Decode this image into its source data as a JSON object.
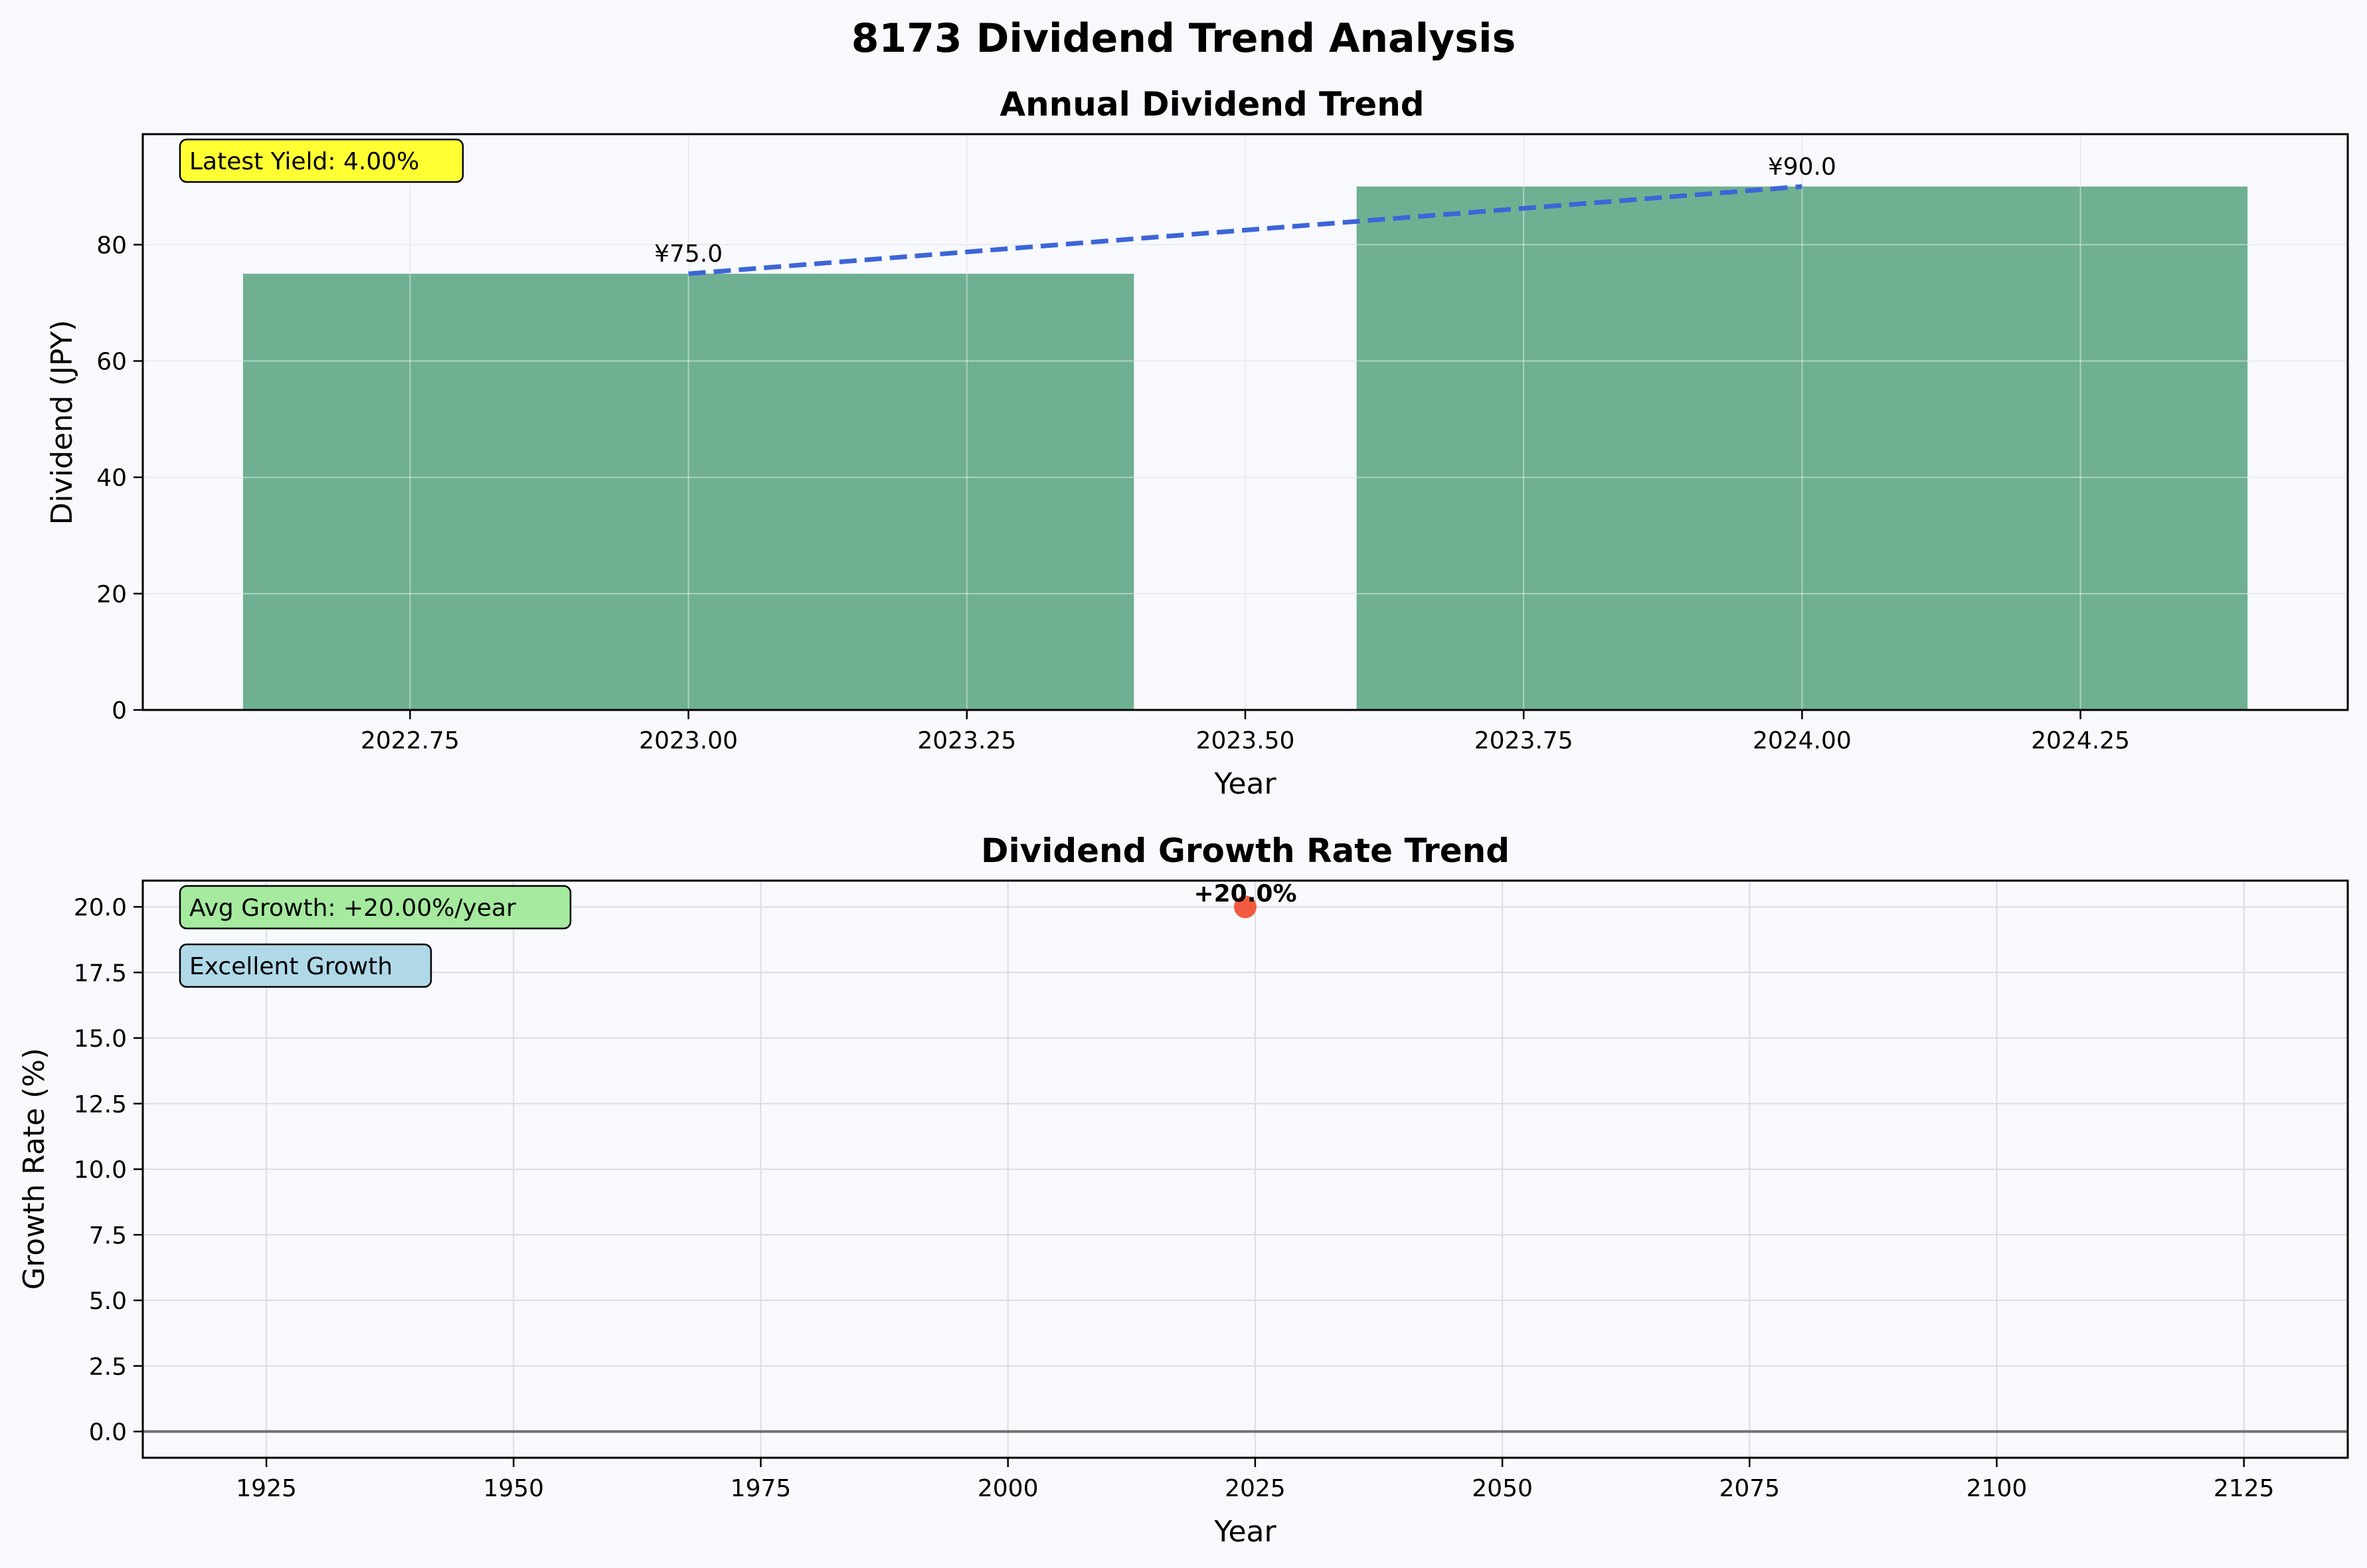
{
  "figure": {
    "title": "8173 Dividend Trend Analysis",
    "background": "#f8f9fc"
  },
  "chart_data": [
    {
      "type": "bar",
      "title": "Annual Dividend Trend",
      "xlabel": "Year",
      "ylabel": "Dividend (JPY)",
      "xlim": [
        2022.51,
        2024.49
      ],
      "ylim": [
        0,
        99
      ],
      "xticks": [
        2022.75,
        2023.0,
        2023.25,
        2023.5,
        2023.75,
        2024.0,
        2024.25
      ],
      "xtick_labels": [
        "2022.75",
        "2023.00",
        "2023.25",
        "2023.50",
        "2023.75",
        "2024.00",
        "2024.25"
      ],
      "yticks": [
        0,
        20,
        40,
        60,
        80
      ],
      "ytick_labels": [
        "0",
        "20",
        "40",
        "60",
        "80"
      ],
      "grid": true,
      "bar_width": 0.8,
      "bars": [
        {
          "x": 2023,
          "value": 75.0,
          "label": "¥75.0"
        },
        {
          "x": 2024,
          "value": 90.0,
          "label": "¥90.0"
        }
      ],
      "trend_line": {
        "style": "dashed",
        "points": [
          [
            2023,
            75.0
          ],
          [
            2024,
            90.0
          ]
        ]
      },
      "colors": {
        "bar": "#5ba583",
        "trend": "#3d65d8"
      },
      "annotation": {
        "text": "Latest Yield: 4.00%",
        "color": "#ffff33",
        "placement": "top-left"
      }
    },
    {
      "type": "scatter",
      "title": "Dividend Growth Rate Trend",
      "xlabel": "Year",
      "ylabel": "Growth Rate (%)",
      "xlim": [
        1912.5,
        2135.5
      ],
      "ylim": [
        -1.0,
        21.0
      ],
      "xticks": [
        1925,
        1950,
        1975,
        2000,
        2025,
        2050,
        2075,
        2100,
        2125
      ],
      "xtick_labels": [
        "1925",
        "1950",
        "1975",
        "2000",
        "2025",
        "2050",
        "2075",
        "2100",
        "2125"
      ],
      "yticks": [
        0.0,
        2.5,
        5.0,
        7.5,
        10.0,
        12.5,
        15.0,
        17.5,
        20.0
      ],
      "ytick_labels": [
        "0.0",
        "2.5",
        "5.0",
        "7.5",
        "10.0",
        "12.5",
        "15.0",
        "17.5",
        "20.0"
      ],
      "grid": true,
      "points": [
        {
          "x": 2024,
          "y": 20.0,
          "label": "+20.0%"
        }
      ],
      "zero_line": 0,
      "colors": {
        "point": "#f25b3f",
        "zero_line": "#707070"
      },
      "annotations": [
        {
          "text": "Avg Growth: +20.00%/year",
          "color": "#a5ea9e",
          "placement": "top-left"
        },
        {
          "text": "Excellent Growth",
          "color": "#b0d9e8",
          "placement": "top-left"
        }
      ]
    }
  ]
}
